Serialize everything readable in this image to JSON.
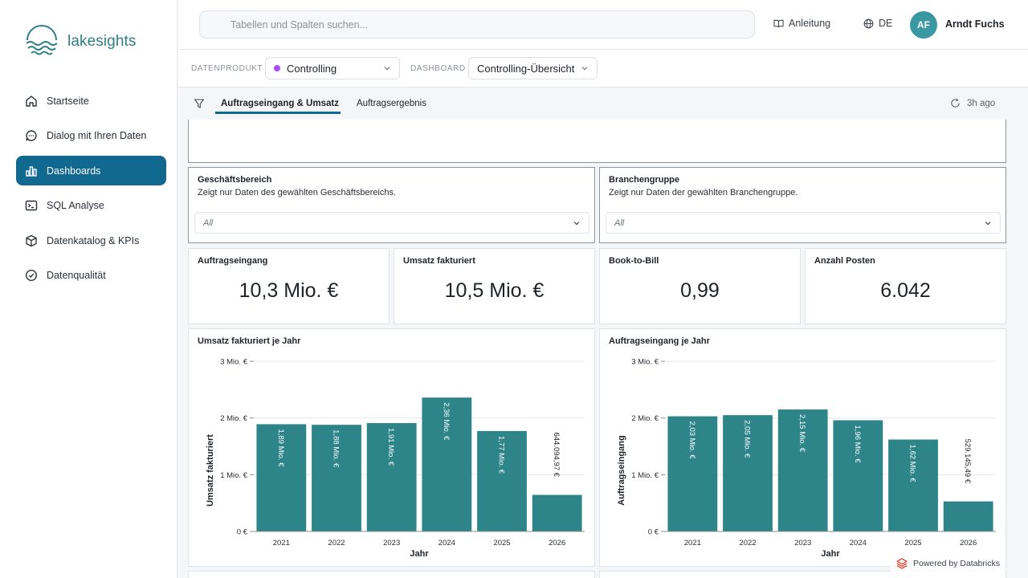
{
  "app": {
    "name": "lakesights"
  },
  "sidebar": {
    "items": [
      {
        "label": "Startseite",
        "icon": "home-icon",
        "active": false
      },
      {
        "label": "Dialog mit Ihren Daten",
        "icon": "chat-icon",
        "active": false
      },
      {
        "label": "Dashboards",
        "icon": "bar-chart-icon",
        "active": true
      },
      {
        "label": "SQL Analyse",
        "icon": "terminal-icon",
        "active": false
      },
      {
        "label": "Datenkatalog & KPIs",
        "icon": "cube-icon",
        "active": false
      },
      {
        "label": "Datenqualität",
        "icon": "check-circle-icon",
        "active": false
      }
    ]
  },
  "header": {
    "search_placeholder": "Tabellen und Spalten suchen...",
    "guide_label": "Anleitung",
    "language": "DE",
    "user_initials": "AF",
    "user_name": "Arndt Fuchs"
  },
  "selectors": {
    "product_label": "DATENPRODUKT",
    "product_value": "Controlling",
    "product_color": "#a64dff",
    "dashboard_label": "DASHBOARD",
    "dashboard_value": "Controlling-Übersicht"
  },
  "tabs": [
    {
      "label": "Auftragseingang & Umsatz",
      "active": true
    },
    {
      "label": "Auftragsergebnis",
      "active": false
    }
  ],
  "refresh_label": "3h ago",
  "filters": [
    {
      "title": "Geschäftsbereich",
      "description": "Zeigt nur Daten des gewählten Geschäftsbereichs.",
      "value": "All"
    },
    {
      "title": "Branchengruppe",
      "description": "Zeigt nur Daten der gewählten Branchengruppe.",
      "value": "All"
    }
  ],
  "kpis": [
    {
      "title": "Auftragseingang",
      "value": "10,3 Mio. €"
    },
    {
      "title": "Umsatz fakturiert",
      "value": "10,5 Mio. €"
    },
    {
      "title": "Book-to-Bill",
      "value": "0,99"
    },
    {
      "title": "Anzahl Posten",
      "value": "6.042"
    }
  ],
  "colors": {
    "accent": "#12698f",
    "bar": "#2e8589"
  },
  "chart_data": [
    {
      "type": "bar",
      "title": "Umsatz fakturiert je Jahr",
      "xlabel": "Jahr",
      "ylabel": "Umsatz fakturiert",
      "categories": [
        "2021",
        "2022",
        "2023",
        "2024",
        "2025",
        "2026"
      ],
      "values": [
        1890000,
        1880000,
        1910000,
        2360000,
        1770000,
        644094.97
      ],
      "data_labels": [
        "1,89 Mio. €",
        "1,88 Mio. €",
        "1,91 Mio. €",
        "2,36 Mio. €",
        "1,77 Mio. €",
        "644.094,97 €"
      ],
      "ylim": [
        0,
        3000000
      ],
      "yticks": [
        0,
        1000000,
        2000000,
        3000000
      ],
      "ytick_labels": [
        "0 €",
        "1 Mio. €",
        "2 Mio. €",
        "3 Mio. €"
      ],
      "grid": true
    },
    {
      "type": "bar",
      "title": "Auftragseingang je Jahr",
      "xlabel": "Jahr",
      "ylabel": "Auftragseingang",
      "categories": [
        "2021",
        "2022",
        "2023",
        "2024",
        "2025",
        "2026"
      ],
      "values": [
        2030000,
        2050000,
        2150000,
        1960000,
        1620000,
        529145.49
      ],
      "data_labels": [
        "2,03 Mio. €",
        "2,05 Mio. €",
        "2,15 Mio. €",
        "1,96 Mio. €",
        "1,62 Mio. €",
        "529.145,49 €"
      ],
      "ylim": [
        0,
        3000000
      ],
      "yticks": [
        0,
        1000000,
        2000000,
        3000000
      ],
      "ytick_labels": [
        "0 €",
        "1 Mio. €",
        "2 Mio. €",
        "3 Mio. €"
      ],
      "grid": true
    }
  ],
  "footer": {
    "powered_by": "Powered by Databricks"
  }
}
